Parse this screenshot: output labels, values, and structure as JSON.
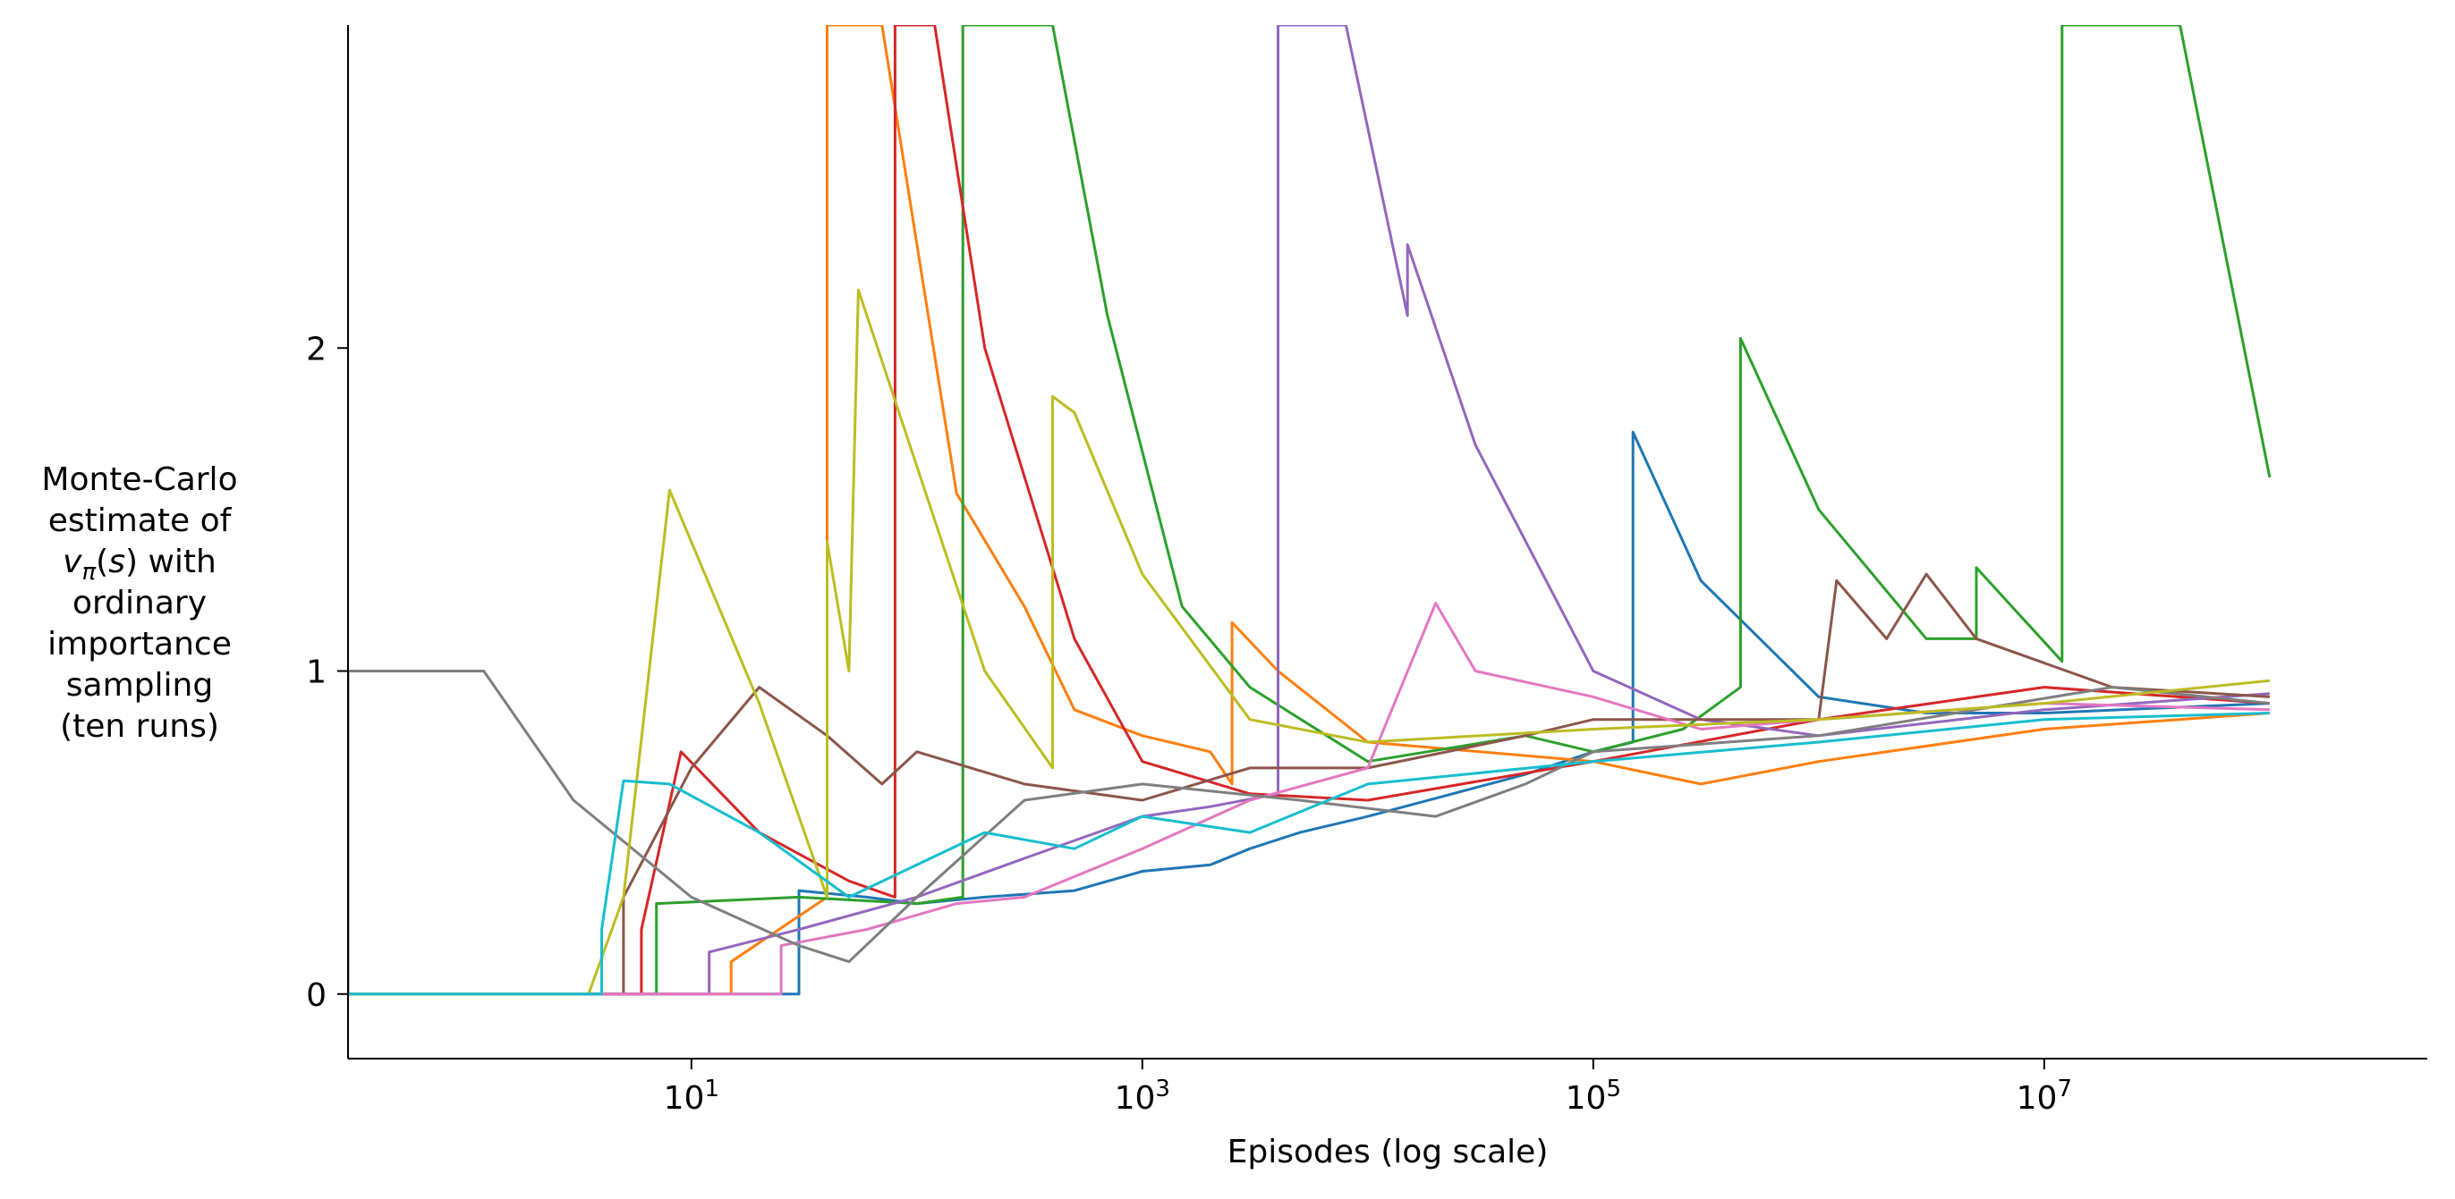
{
  "chart_data": {
    "type": "line",
    "title": "",
    "xlabel": "Episodes (log scale)",
    "ylabel_lines": [
      "Monte-Carlo",
      "estimate of",
      "v_π(s) with",
      "ordinary",
      "importance",
      "sampling",
      "(ten runs)"
    ],
    "xscale": "log",
    "xlim": [
      0.3,
      500000000
    ],
    "ylim": [
      -0.2,
      3.0
    ],
    "x_ticks": [
      {
        "value": 10,
        "base": "10",
        "exp": "1"
      },
      {
        "value": 1000,
        "base": "10",
        "exp": "3"
      },
      {
        "value": 100000,
        "base": "10",
        "exp": "5"
      },
      {
        "value": 10000000,
        "base": "10",
        "exp": "7"
      }
    ],
    "y_ticks": [
      {
        "value": 0,
        "label": "0"
      },
      {
        "value": 1,
        "label": "1"
      },
      {
        "value": 2,
        "label": "2"
      }
    ],
    "grid": false,
    "legend": "none",
    "series": [
      {
        "color": "#1f77b4",
        "points": [
          [
            0.3,
            0
          ],
          [
            30,
            0
          ],
          [
            30,
            0.32
          ],
          [
            60,
            0.3
          ],
          [
            100,
            0.28
          ],
          [
            200,
            0.3
          ],
          [
            500,
            0.32
          ],
          [
            1000,
            0.38
          ],
          [
            2000,
            0.4
          ],
          [
            3000,
            0.45
          ],
          [
            5000,
            0.5
          ],
          [
            10000,
            0.55
          ],
          [
            50000,
            0.68
          ],
          [
            100000,
            0.75
          ],
          [
            150000,
            0.78
          ],
          [
            150000,
            1.74
          ],
          [
            300000,
            1.28
          ],
          [
            1000000,
            0.92
          ],
          [
            3000000,
            0.87
          ],
          [
            10000000,
            0.87
          ],
          [
            100000000,
            0.9
          ]
        ]
      },
      {
        "color": "#ff7f0e",
        "points": [
          [
            0.3,
            0
          ],
          [
            15,
            0
          ],
          [
            15,
            0.1
          ],
          [
            40,
            0.3
          ],
          [
            40,
            3.0
          ],
          [
            70,
            3.0
          ],
          [
            150,
            1.55
          ],
          [
            300,
            1.2
          ],
          [
            500,
            0.88
          ],
          [
            1000,
            0.8
          ],
          [
            2000,
            0.75
          ],
          [
            2500,
            0.65
          ],
          [
            2500,
            1.15
          ],
          [
            4000,
            1.0
          ],
          [
            10000,
            0.78
          ],
          [
            100000,
            0.72
          ],
          [
            300000,
            0.65
          ],
          [
            1000000,
            0.72
          ],
          [
            10000000,
            0.82
          ],
          [
            100000000,
            0.87
          ]
        ]
      },
      {
        "color": "#2ca02c",
        "points": [
          [
            0.3,
            0
          ],
          [
            7,
            0
          ],
          [
            7,
            0.28
          ],
          [
            30,
            0.3
          ],
          [
            100,
            0.28
          ],
          [
            160,
            0.3
          ],
          [
            160,
            3.0
          ],
          [
            200,
            3.0
          ],
          [
            400,
            3.0
          ],
          [
            700,
            2.1
          ],
          [
            1500,
            1.2
          ],
          [
            3000,
            0.95
          ],
          [
            10000,
            0.72
          ],
          [
            50000,
            0.8
          ],
          [
            100000,
            0.75
          ],
          [
            250000,
            0.82
          ],
          [
            450000,
            0.95
          ],
          [
            450000,
            2.03
          ],
          [
            1000000,
            1.5
          ],
          [
            3000000,
            1.1
          ],
          [
            5000000,
            1.1
          ],
          [
            5000000,
            1.32
          ],
          [
            12000000,
            1.03
          ],
          [
            12000000,
            3.0
          ],
          [
            40000000,
            3.0
          ],
          [
            100000000,
            1.6
          ]
        ]
      },
      {
        "color": "#d62728",
        "points": [
          [
            0.3,
            0
          ],
          [
            6,
            0
          ],
          [
            6,
            0.2
          ],
          [
            9,
            0.75
          ],
          [
            20,
            0.5
          ],
          [
            50,
            0.35
          ],
          [
            80,
            0.3
          ],
          [
            80,
            3.0
          ],
          [
            120,
            3.0
          ],
          [
            200,
            2.0
          ],
          [
            500,
            1.1
          ],
          [
            1000,
            0.72
          ],
          [
            3000,
            0.62
          ],
          [
            10000,
            0.6
          ],
          [
            100000,
            0.72
          ],
          [
            1000000,
            0.85
          ],
          [
            5000000,
            0.92
          ],
          [
            10000000,
            0.95
          ],
          [
            100000000,
            0.9
          ]
        ]
      },
      {
        "color": "#9467bd",
        "points": [
          [
            0.3,
            0
          ],
          [
            12,
            0
          ],
          [
            12,
            0.13
          ],
          [
            30,
            0.2
          ],
          [
            100,
            0.3
          ],
          [
            300,
            0.42
          ],
          [
            1000,
            0.55
          ],
          [
            2000,
            0.58
          ],
          [
            4000,
            0.62
          ],
          [
            4000,
            3.0
          ],
          [
            8000,
            3.0
          ],
          [
            15000,
            2.1
          ],
          [
            15000,
            2.32
          ],
          [
            30000,
            1.7
          ],
          [
            100000,
            1.0
          ],
          [
            300000,
            0.85
          ],
          [
            1000000,
            0.8
          ],
          [
            10000000,
            0.88
          ],
          [
            100000000,
            0.93
          ]
        ]
      },
      {
        "color": "#8c564b",
        "points": [
          [
            0.3,
            0
          ],
          [
            5,
            0
          ],
          [
            5,
            0.3
          ],
          [
            10,
            0.7
          ],
          [
            20,
            0.95
          ],
          [
            40,
            0.8
          ],
          [
            70,
            0.65
          ],
          [
            100,
            0.75
          ],
          [
            300,
            0.65
          ],
          [
            1000,
            0.6
          ],
          [
            3000,
            0.7
          ],
          [
            10000,
            0.7
          ],
          [
            50000,
            0.8
          ],
          [
            100000,
            0.85
          ],
          [
            1000000,
            0.85
          ],
          [
            1200000,
            1.28
          ],
          [
            2000000,
            1.1
          ],
          [
            3000000,
            1.3
          ],
          [
            5000000,
            1.1
          ],
          [
            20000000,
            0.95
          ],
          [
            100000000,
            0.92
          ]
        ]
      },
      {
        "color": "#e377c2",
        "points": [
          [
            0.3,
            0
          ],
          [
            25,
            0
          ],
          [
            25,
            0.15
          ],
          [
            60,
            0.2
          ],
          [
            150,
            0.28
          ],
          [
            300,
            0.3
          ],
          [
            1000,
            0.45
          ],
          [
            3000,
            0.6
          ],
          [
            10000,
            0.7
          ],
          [
            20000,
            1.21
          ],
          [
            30000,
            1.0
          ],
          [
            100000,
            0.92
          ],
          [
            300000,
            0.82
          ],
          [
            1000000,
            0.85
          ],
          [
            10000000,
            0.9
          ],
          [
            100000000,
            0.88
          ]
        ]
      },
      {
        "color": "#7f7f7f",
        "points": [
          [
            0.3,
            0
          ],
          [
            0.3,
            1.0
          ],
          [
            1.2,
            1.0
          ],
          [
            3,
            0.6
          ],
          [
            10,
            0.3
          ],
          [
            30,
            0.15
          ],
          [
            50,
            0.1
          ],
          [
            100,
            0.3
          ],
          [
            300,
            0.6
          ],
          [
            1000,
            0.65
          ],
          [
            5000,
            0.6
          ],
          [
            20000,
            0.55
          ],
          [
            50000,
            0.65
          ],
          [
            100000,
            0.75
          ],
          [
            1000000,
            0.8
          ],
          [
            20000000,
            0.95
          ],
          [
            100000000,
            0.9
          ]
        ]
      },
      {
        "color": "#bcbd22",
        "points": [
          [
            0.3,
            0
          ],
          [
            3.5,
            0
          ],
          [
            5,
            0.3
          ],
          [
            8,
            1.56
          ],
          [
            20,
            0.9
          ],
          [
            40,
            0.3
          ],
          [
            40,
            1.4
          ],
          [
            50,
            1.0
          ],
          [
            55,
            2.18
          ],
          [
            200,
            1.0
          ],
          [
            400,
            0.7
          ],
          [
            400,
            1.85
          ],
          [
            500,
            1.8
          ],
          [
            1000,
            1.3
          ],
          [
            3000,
            0.85
          ],
          [
            10000,
            0.78
          ],
          [
            100000,
            0.82
          ],
          [
            1000000,
            0.85
          ],
          [
            10000000,
            0.9
          ],
          [
            100000000,
            0.97
          ]
        ]
      },
      {
        "color": "#17becf",
        "points": [
          [
            0.3,
            0
          ],
          [
            4,
            0
          ],
          [
            4,
            0.2
          ],
          [
            5,
            0.66
          ],
          [
            8,
            0.65
          ],
          [
            20,
            0.5
          ],
          [
            50,
            0.3
          ],
          [
            200,
            0.5
          ],
          [
            500,
            0.45
          ],
          [
            1000,
            0.55
          ],
          [
            3000,
            0.5
          ],
          [
            10000,
            0.65
          ],
          [
            100000,
            0.72
          ],
          [
            1000000,
            0.78
          ],
          [
            10000000,
            0.85
          ],
          [
            100000000,
            0.87
          ]
        ]
      }
    ]
  }
}
